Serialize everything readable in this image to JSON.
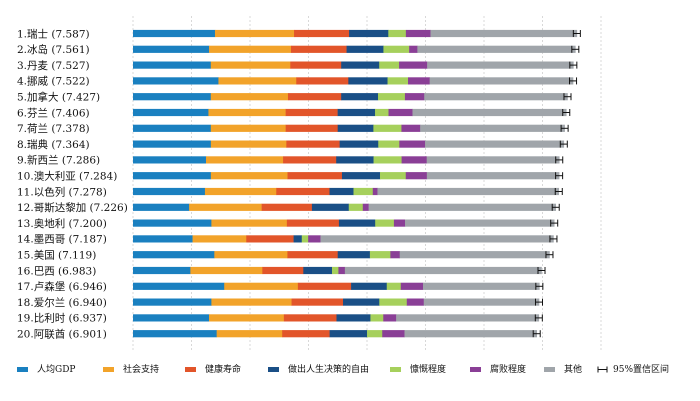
{
  "chart_data": {
    "type": "bar",
    "stacked": true,
    "orientation": "horizontal",
    "x_axis_visible": false,
    "grid": true,
    "legend_position": "bottom",
    "countries": [
      {
        "label": "1.瑞士 (7.587)",
        "score": 7.587
      },
      {
        "label": "2.冰岛 (7.561)",
        "score": 7.561
      },
      {
        "label": "3.丹麦 (7.527)",
        "score": 7.527
      },
      {
        "label": "4.挪威 (7.522)",
        "score": 7.522
      },
      {
        "label": "5.加拿大 (7.427)",
        "score": 7.427
      },
      {
        "label": "6.芬兰 (7.406)",
        "score": 7.406
      },
      {
        "label": "7.荷兰 (7.378)",
        "score": 7.378
      },
      {
        "label": "8.瑞典 (7.364)",
        "score": 7.364
      },
      {
        "label": "9.新西兰 (7.286)",
        "score": 7.286
      },
      {
        "label": "10.澳大利亚 (7.284)",
        "score": 7.284
      },
      {
        "label": "11.以色列 (7.278)",
        "score": 7.278
      },
      {
        "label": "12.哥斯达黎加 (7.226)",
        "score": 7.226
      },
      {
        "label": "13.奥地利 (7.200)",
        "score": 7.2
      },
      {
        "label": "14.墨西哥 (7.187)",
        "score": 7.187
      },
      {
        "label": "15.美国 (7.119)",
        "score": 7.119
      },
      {
        "label": "16.巴西 (6.983)",
        "score": 6.983
      },
      {
        "label": "17.卢森堡 (6.946)",
        "score": 6.946
      },
      {
        "label": "18.爱尔兰 (6.940)",
        "score": 6.94
      },
      {
        "label": "19.比利时 (6.937)",
        "score": 6.937
      },
      {
        "label": "20.阿联酋 (6.901)",
        "score": 6.901
      }
    ],
    "series": [
      {
        "name": "人均GDP",
        "color": "#1a80c0",
        "values": [
          1.4,
          1.3,
          1.33,
          1.46,
          1.33,
          1.29,
          1.33,
          1.33,
          1.25,
          1.33,
          1.23,
          0.96,
          1.34,
          1.02,
          1.39,
          0.98,
          1.56,
          1.34,
          1.3,
          1.43
        ]
      },
      {
        "name": "社会支持",
        "color": "#f2a32a",
        "values": [
          1.35,
          1.4,
          1.36,
          1.33,
          1.32,
          1.32,
          1.28,
          1.29,
          1.32,
          1.31,
          1.22,
          1.24,
          1.29,
          0.92,
          1.25,
          1.23,
          1.26,
          1.37,
          1.28,
          1.12
        ]
      },
      {
        "name": "健康寿命",
        "color": "#e2552a",
        "values": [
          0.94,
          0.95,
          0.87,
          0.89,
          0.91,
          0.89,
          0.89,
          0.91,
          0.91,
          0.93,
          0.91,
          0.86,
          0.89,
          0.81,
          0.86,
          0.7,
          0.91,
          0.88,
          0.9,
          0.81
        ]
      },
      {
        "name": "做出人生决策的自由",
        "color": "#1a4f86",
        "values": [
          0.67,
          0.63,
          0.65,
          0.67,
          0.63,
          0.64,
          0.61,
          0.66,
          0.64,
          0.65,
          0.41,
          0.63,
          0.62,
          0.14,
          0.55,
          0.49,
          0.61,
          0.62,
          0.58,
          0.64
        ]
      },
      {
        "name": "慷慨程度",
        "color": "#a6d05c",
        "values": [
          0.3,
          0.44,
          0.34,
          0.35,
          0.46,
          0.23,
          0.48,
          0.36,
          0.48,
          0.44,
          0.33,
          0.24,
          0.32,
          0.11,
          0.35,
          0.11,
          0.24,
          0.47,
          0.22,
          0.26
        ]
      },
      {
        "name": "腐败程度",
        "color": "#8a3f96",
        "values": [
          0.42,
          0.14,
          0.48,
          0.37,
          0.33,
          0.41,
          0.32,
          0.44,
          0.43,
          0.36,
          0.08,
          0.1,
          0.19,
          0.21,
          0.16,
          0.11,
          0.38,
          0.29,
          0.22,
          0.38
        ]
      },
      {
        "name": "其他",
        "color": "#a0a5aa",
        "values": [
          2.5,
          2.7,
          2.5,
          2.45,
          2.45,
          2.63,
          2.47,
          2.37,
          2.27,
          2.26,
          3.1,
          3.2,
          2.55,
          3.99,
          2.56,
          3.36,
          1.99,
          1.97,
          2.44,
          2.26
        ]
      }
    ],
    "error_bar": {
      "name": "95%置信区间",
      "half_width": 0.06
    }
  }
}
